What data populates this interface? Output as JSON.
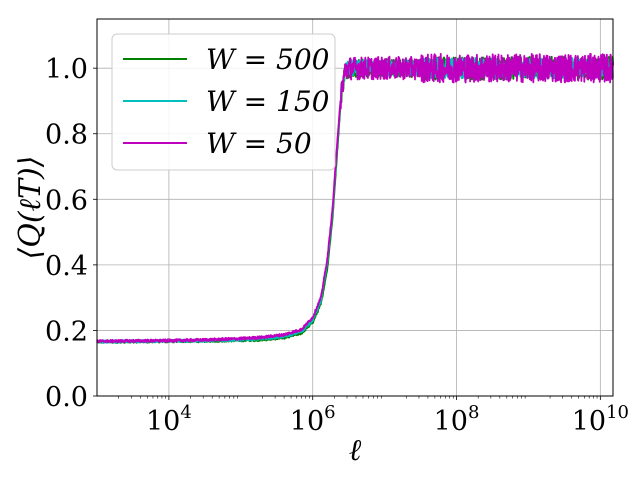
{
  "chart_data": {
    "type": "line",
    "title": "",
    "xlabel": "ℓ",
    "ylabel": "⟨Q(ℓT)⟩",
    "xscale": "log",
    "xlim": [
      1000,
      15000000000
    ],
    "ylim": [
      0.0,
      1.15
    ],
    "grid": true,
    "legend_position": "top-left",
    "x_ticks": [
      {
        "value": 10000,
        "base": "10",
        "exp": "4"
      },
      {
        "value": 1000000,
        "base": "10",
        "exp": "6"
      },
      {
        "value": 100000000,
        "base": "10",
        "exp": "8"
      },
      {
        "value": 10000000000,
        "base": "10",
        "exp": "10"
      }
    ],
    "y_ticks": [
      {
        "value": 0.0,
        "label": "0.0"
      },
      {
        "value": 0.2,
        "label": "0.2"
      },
      {
        "value": 0.4,
        "label": "0.4"
      },
      {
        "value": 0.6,
        "label": "0.6"
      },
      {
        "value": 0.8,
        "label": "0.8"
      },
      {
        "value": 1.0,
        "label": "1.0"
      }
    ],
    "series": [
      {
        "name": "W = 500",
        "color": "#008000",
        "noise": 0.028,
        "x": [
          1000,
          3000,
          10000,
          30000,
          100000,
          200000,
          400000,
          700000,
          1000000,
          1300000,
          1600000,
          1900000,
          2200000,
          2500000,
          2800000,
          3200000,
          4000000,
          10000000,
          100000000,
          1000000000,
          15000000000
        ],
        "y": [
          0.165,
          0.166,
          0.167,
          0.168,
          0.17,
          0.172,
          0.178,
          0.192,
          0.225,
          0.28,
          0.39,
          0.55,
          0.75,
          0.92,
          0.99,
          1.0,
          1.0,
          1.0,
          1.0,
          1.0,
          1.0
        ]
      },
      {
        "name": "W = 150",
        "color": "#00bfbf",
        "noise": 0.025,
        "x": [
          1000,
          3000,
          10000,
          30000,
          100000,
          200000,
          400000,
          700000,
          1000000,
          1300000,
          1600000,
          1900000,
          2200000,
          2500000,
          2800000,
          3200000,
          4000000,
          10000000,
          100000000,
          1000000000,
          15000000000
        ],
        "y": [
          0.166,
          0.167,
          0.168,
          0.169,
          0.172,
          0.175,
          0.182,
          0.197,
          0.232,
          0.29,
          0.41,
          0.57,
          0.77,
          0.93,
          0.99,
          1.0,
          1.0,
          1.0,
          1.0,
          1.0,
          1.0
        ]
      },
      {
        "name": "W = 50",
        "color": "#bf00bf",
        "noise": 0.035,
        "x": [
          1000,
          3000,
          10000,
          30000,
          100000,
          200000,
          400000,
          700000,
          1000000,
          1300000,
          1600000,
          1900000,
          2200000,
          2500000,
          2800000,
          3200000,
          4000000,
          10000000,
          100000000,
          1000000000,
          15000000000
        ],
        "y": [
          0.167,
          0.168,
          0.169,
          0.171,
          0.175,
          0.179,
          0.187,
          0.203,
          0.24,
          0.3,
          0.42,
          0.58,
          0.78,
          0.93,
          0.99,
          1.0,
          1.0,
          1.0,
          1.0,
          1.0,
          1.0
        ]
      }
    ]
  }
}
